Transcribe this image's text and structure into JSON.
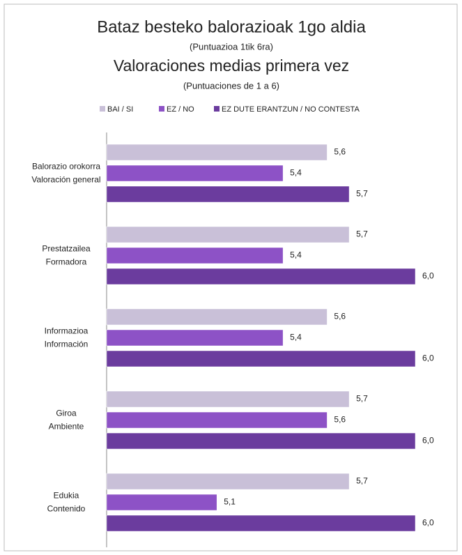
{
  "chart_data": {
    "type": "hbar",
    "title": "Bataz besteko balorazioak 1go aldia",
    "subtitle": "(Puntuazioa 1tik 6ra)",
    "title2": "Valoraciones medias primera vez",
    "subtitle2": "(Puntuaciones de 1 a 6)",
    "categories": [
      [
        "Balorazio orokorra",
        "Valoración general"
      ],
      [
        "Prestatzailea",
        "Formadora"
      ],
      [
        "Informazioa",
        "Información"
      ],
      [
        "Giroa",
        "Ambiente"
      ],
      [
        "Edukia",
        "Contenido"
      ]
    ],
    "xlim": [
      4.6,
      6.0
    ],
    "legend": "top",
    "series": [
      {
        "name": "BAI / SI",
        "color": "#c9c0d8",
        "values": [
          5.6,
          5.7,
          5.6,
          5.7,
          5.7
        ],
        "value_labels": [
          "5,6",
          "5,7",
          "5,6",
          "5,7",
          "5,7"
        ]
      },
      {
        "name": "EZ / NO",
        "color": "#8d52c6",
        "values": [
          5.4,
          5.4,
          5.4,
          5.6,
          5.1
        ],
        "value_labels": [
          "5,4",
          "5,4",
          "5,4",
          "5,6",
          "5,1"
        ]
      },
      {
        "name": "EZ DUTE ERANTZUN / NO CONTESTA",
        "color": "#6b3c9e",
        "values": [
          5.7,
          6.0,
          6.0,
          6.0,
          6.0
        ],
        "value_labels": [
          "5,7",
          "6,0",
          "6,0",
          "6,0",
          "6,0"
        ]
      }
    ]
  }
}
